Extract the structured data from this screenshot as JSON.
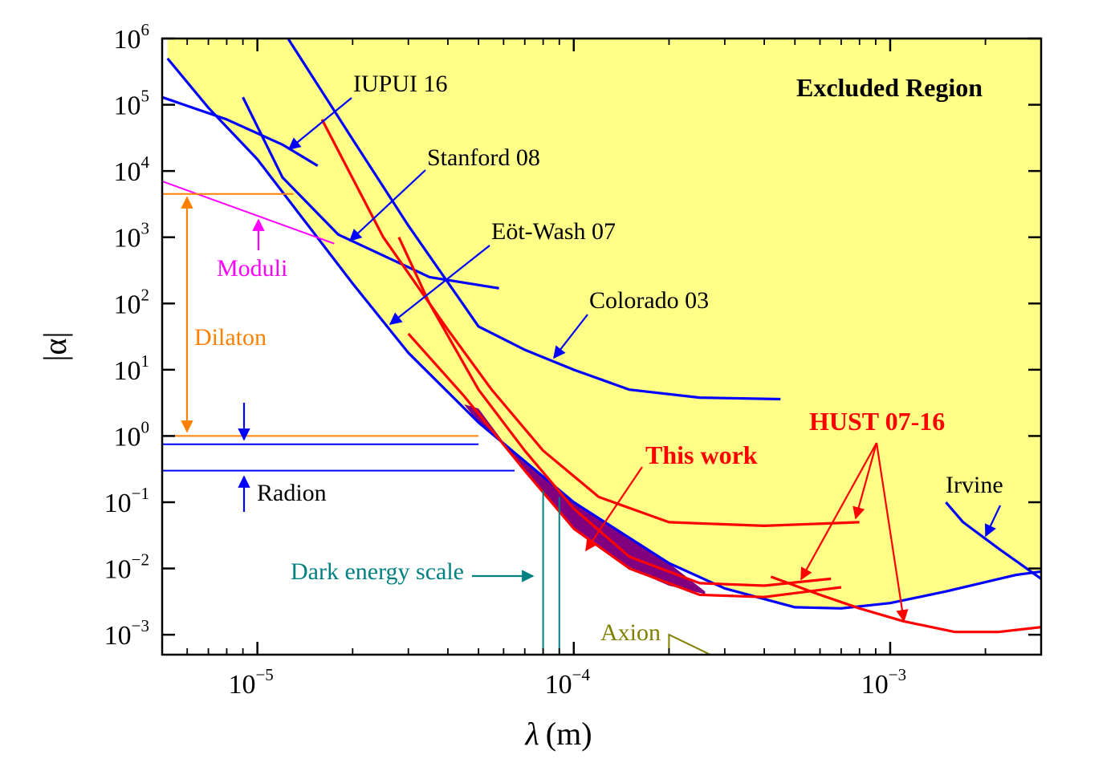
{
  "chart_data": {
    "type": "line",
    "xlabel_symbol": "λ",
    "xlabel_unit": "(m)",
    "ylabel": "|α|",
    "x_scale": "log",
    "y_scale": "log",
    "xlim": [
      5e-06,
      0.003
    ],
    "ylim": [
      0.0005,
      1000000.0
    ],
    "x_ticks": [
      {
        "value": 1e-05,
        "base": "10",
        "exp": "−5"
      },
      {
        "value": 0.0001,
        "base": "10",
        "exp": "−4"
      },
      {
        "value": 0.001,
        "base": "10",
        "exp": "−3"
      }
    ],
    "y_ticks": [
      {
        "value": 1000000.0,
        "base": "10",
        "exp": "6"
      },
      {
        "value": 100000.0,
        "base": "10",
        "exp": "5"
      },
      {
        "value": 10000.0,
        "base": "10",
        "exp": "4"
      },
      {
        "value": 1000.0,
        "base": "10",
        "exp": "3"
      },
      {
        "value": 100.0,
        "base": "10",
        "exp": "2"
      },
      {
        "value": 10.0,
        "base": "10",
        "exp": "1"
      },
      {
        "value": 1.0,
        "base": "10",
        "exp": "0"
      },
      {
        "value": 0.1,
        "base": "10",
        "exp": "−1"
      },
      {
        "value": 0.01,
        "base": "10",
        "exp": "−2"
      },
      {
        "value": 0.001,
        "base": "10",
        "exp": "−3"
      }
    ],
    "grid": false,
    "excluded_region_fill": "#ffff88",
    "this_work_fill": "#800080",
    "annotations": {
      "excluded_region": "Excluded Region",
      "iupui": "IUPUI 16",
      "stanford": "Stanford 08",
      "eotwash": "Eöt-Wash 07",
      "colorado": "Colorado 03",
      "hust": "HUST 07-16",
      "this_work": "This work",
      "irvine": "Irvine",
      "moduli": "Moduli",
      "dilaton": "Dilaton",
      "radion": "Radion",
      "dark_energy": "Dark energy scale",
      "axion": "Axion"
    },
    "series": [
      {
        "key": "iupui",
        "color": "#0000ff",
        "points": [
          [
            5e-06,
            130000.0
          ],
          [
            8e-06,
            60000.0
          ],
          [
            1.2e-05,
            25000.0
          ],
          [
            1.55e-05,
            12000.0
          ]
        ]
      },
      {
        "key": "stanford",
        "color": "#0000ff",
        "points": [
          [
            9e-06,
            130000.0
          ],
          [
            1.2e-05,
            8000.0
          ],
          [
            1.8e-05,
            1100.0
          ],
          [
            3.5e-05,
            250
          ],
          [
            5.8e-05,
            170
          ]
        ]
      },
      {
        "key": "eotwash",
        "color": "#0000ff",
        "points": [
          [
            5.2e-06,
            500000.0
          ],
          [
            7e-06,
            90000.0
          ],
          [
            1e-05,
            15000.0
          ],
          [
            2e-05,
            200
          ],
          [
            3e-05,
            18
          ],
          [
            5e-05,
            1.6
          ],
          [
            0.0001,
            0.1
          ],
          [
            0.0002,
            0.012
          ],
          [
            0.0003,
            0.005
          ],
          [
            0.0005,
            0.0026
          ],
          [
            0.0007,
            0.0025
          ],
          [
            0.001,
            0.003
          ],
          [
            0.0015,
            0.0045
          ],
          [
            0.0025,
            0.008
          ],
          [
            0.003,
            0.009
          ]
        ]
      },
      {
        "key": "colorado",
        "color": "#0000ff",
        "points": [
          [
            1.25e-05,
            1000000.0
          ],
          [
            2e-05,
            30000.0
          ],
          [
            3e-05,
            1500.0
          ],
          [
            5e-05,
            45
          ],
          [
            7e-05,
            20
          ],
          [
            0.0001,
            10
          ],
          [
            0.00015,
            5
          ],
          [
            0.00025,
            3.8
          ],
          [
            0.00045,
            3.6
          ]
        ]
      },
      {
        "key": "irvine",
        "color": "#0000ff",
        "points": [
          [
            0.0015,
            0.1
          ],
          [
            0.0017,
            0.05
          ],
          [
            0.0022,
            0.02
          ],
          [
            0.003,
            0.007
          ]
        ]
      },
      {
        "key": "hust_a",
        "color": "#ff0000",
        "points": [
          [
            1.6e-05,
            60000.0
          ],
          [
            2.5e-05,
            1000.0
          ],
          [
            4e-05,
            40
          ],
          [
            5.5e-05,
            5
          ],
          [
            8e-05,
            0.6
          ],
          [
            0.00012,
            0.12
          ],
          [
            0.0002,
            0.05
          ],
          [
            0.0004,
            0.044
          ],
          [
            0.0008,
            0.05
          ]
        ]
      },
      {
        "key": "hust_b",
        "color": "#ff0000",
        "points": [
          [
            2.8e-05,
            1000.0
          ],
          [
            3.5e-05,
            100
          ],
          [
            5e-05,
            5
          ],
          [
            7e-05,
            0.6
          ],
          [
            0.0001,
            0.08
          ],
          [
            0.00015,
            0.015
          ],
          [
            0.00025,
            0.006
          ],
          [
            0.0004,
            0.0055
          ],
          [
            0.00065,
            0.007
          ]
        ]
      },
      {
        "key": "hust_c",
        "color": "#ff0000",
        "points": [
          [
            3e-05,
            35
          ],
          [
            4.5e-05,
            4
          ],
          [
            7e-05,
            0.3
          ],
          [
            0.0001,
            0.04
          ],
          [
            0.00015,
            0.01
          ],
          [
            0.00025,
            0.004
          ],
          [
            0.0004,
            0.0037
          ],
          [
            0.0007,
            0.0052
          ]
        ]
      },
      {
        "key": "hust_d",
        "color": "#ff0000",
        "points": [
          [
            0.00042,
            0.0075
          ],
          [
            0.0006,
            0.004
          ],
          [
            0.0008,
            0.0025
          ],
          [
            0.0011,
            0.0016
          ],
          [
            0.0016,
            0.0011
          ],
          [
            0.0022,
            0.0011
          ],
          [
            0.003,
            0.0013
          ]
        ]
      },
      {
        "key": "moduli",
        "color": "#ff00ff",
        "points": [
          [
            5e-06,
            7000
          ],
          [
            1.75e-05,
            800
          ]
        ]
      }
    ]
  }
}
